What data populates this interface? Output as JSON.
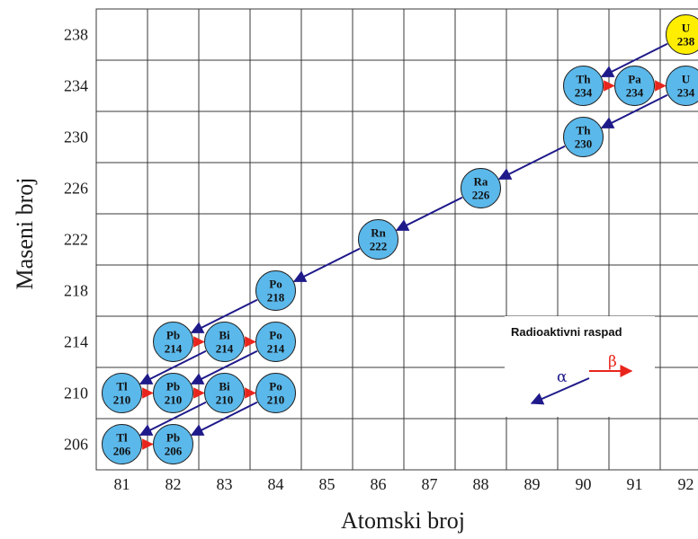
{
  "axes": {
    "x_title": "Atomski broj",
    "y_title": "Maseni broj",
    "x_ticks": [
      "81",
      "82",
      "83",
      "84",
      "85",
      "86",
      "87",
      "88",
      "89",
      "90",
      "91",
      "92"
    ],
    "y_ticks": [
      "238",
      "234",
      "230",
      "226",
      "222",
      "218",
      "214",
      "210",
      "206"
    ]
  },
  "colors": {
    "nuclide": "#5bb8ea",
    "start_nuclide": "#ffee00",
    "alpha_arrow": "#1f1a8a",
    "beta_arrow": "#e8251c",
    "grid": "#3a3a3a"
  },
  "nuclides": [
    {
      "symbol": "U",
      "mass": "238",
      "z": 92,
      "a": 238,
      "start": true
    },
    {
      "symbol": "Th",
      "mass": "234",
      "z": 90,
      "a": 234
    },
    {
      "symbol": "Pa",
      "mass": "234",
      "z": 91,
      "a": 234
    },
    {
      "symbol": "U",
      "mass": "234",
      "z": 92,
      "a": 234
    },
    {
      "symbol": "Th",
      "mass": "230",
      "z": 90,
      "a": 230
    },
    {
      "symbol": "Ra",
      "mass": "226",
      "z": 88,
      "a": 226
    },
    {
      "symbol": "Rn",
      "mass": "222",
      "z": 86,
      "a": 222
    },
    {
      "symbol": "Po",
      "mass": "218",
      "z": 84,
      "a": 218
    },
    {
      "symbol": "Pb",
      "mass": "214",
      "z": 82,
      "a": 214
    },
    {
      "symbol": "Bi",
      "mass": "214",
      "z": 83,
      "a": 214
    },
    {
      "symbol": "Po",
      "mass": "214",
      "z": 84,
      "a": 214
    },
    {
      "symbol": "Tl",
      "mass": "210",
      "z": 81,
      "a": 210
    },
    {
      "symbol": "Pb",
      "mass": "210",
      "z": 82,
      "a": 210
    },
    {
      "symbol": "Bi",
      "mass": "210",
      "z": 83,
      "a": 210
    },
    {
      "symbol": "Po",
      "mass": "210",
      "z": 84,
      "a": 210
    },
    {
      "symbol": "Tl",
      "mass": "206",
      "z": 81,
      "a": 206
    },
    {
      "symbol": "Pb",
      "mass": "206",
      "z": 82,
      "a": 206
    }
  ],
  "decays": [
    {
      "type": "alpha",
      "from": [
        92,
        238
      ],
      "to": [
        90,
        234
      ]
    },
    {
      "type": "beta",
      "from": [
        90,
        234
      ],
      "to": [
        91,
        234
      ]
    },
    {
      "type": "beta",
      "from": [
        91,
        234
      ],
      "to": [
        92,
        234
      ]
    },
    {
      "type": "alpha",
      "from": [
        92,
        234
      ],
      "to": [
        90,
        230
      ]
    },
    {
      "type": "alpha",
      "from": [
        90,
        230
      ],
      "to": [
        88,
        226
      ]
    },
    {
      "type": "alpha",
      "from": [
        88,
        226
      ],
      "to": [
        86,
        222
      ]
    },
    {
      "type": "alpha",
      "from": [
        86,
        222
      ],
      "to": [
        84,
        218
      ]
    },
    {
      "type": "alpha",
      "from": [
        84,
        218
      ],
      "to": [
        82,
        214
      ]
    },
    {
      "type": "beta",
      "from": [
        82,
        214
      ],
      "to": [
        83,
        214
      ]
    },
    {
      "type": "beta",
      "from": [
        83,
        214
      ],
      "to": [
        84,
        214
      ]
    },
    {
      "type": "alpha",
      "from": [
        83,
        214
      ],
      "to": [
        81,
        210
      ]
    },
    {
      "type": "alpha",
      "from": [
        84,
        214
      ],
      "to": [
        82,
        210
      ]
    },
    {
      "type": "beta",
      "from": [
        81,
        210
      ],
      "to": [
        82,
        210
      ]
    },
    {
      "type": "beta",
      "from": [
        82,
        210
      ],
      "to": [
        83,
        210
      ]
    },
    {
      "type": "beta",
      "from": [
        83,
        210
      ],
      "to": [
        84,
        210
      ]
    },
    {
      "type": "alpha",
      "from": [
        83,
        210
      ],
      "to": [
        81,
        206
      ]
    },
    {
      "type": "alpha",
      "from": [
        84,
        210
      ],
      "to": [
        82,
        206
      ]
    },
    {
      "type": "beta",
      "from": [
        81,
        206
      ],
      "to": [
        82,
        206
      ]
    }
  ],
  "legend": {
    "title": "Radioaktivni raspad",
    "alpha_label": "α",
    "beta_label": "β"
  }
}
